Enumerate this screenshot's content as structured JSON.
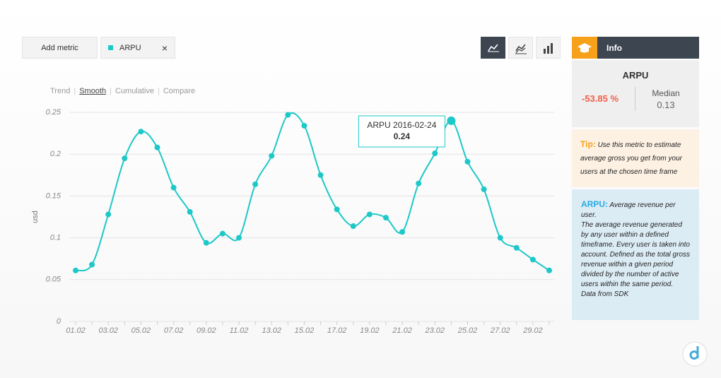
{
  "toolbar": {
    "add_metric": "Add metric",
    "metric": "ARPU",
    "remove": "×"
  },
  "modes": [
    "Trend",
    "Smooth",
    "Cumulative",
    "Compare"
  ],
  "info": {
    "header": "Info",
    "metric": "ARPU",
    "change": "-53.85 %",
    "median_label": "Median",
    "median_value": "0.13",
    "tip_label": "Tip:",
    "tip_text": "Use this metric to estimate average gross you get from your users at the chosen time frame",
    "definition_label": "ARPU:",
    "definition_lines": [
      "Average revenue per user.",
      "The average revenue generated by any user within a defined timeframe. Every user is taken into account. Defined as the total gross revenue within a given period divided by the number of active users within the same period.",
      "Data from SDK"
    ]
  },
  "chart_data": {
    "type": "line",
    "y_label": "usd",
    "categories": [
      "01.02",
      null,
      "03.02",
      null,
      "05.02",
      null,
      "07.02",
      null,
      "09.02",
      null,
      "11.02",
      null,
      "13.02",
      null,
      "15.02",
      null,
      "17.02",
      null,
      "19.02",
      null,
      "21.02",
      null,
      "23.02",
      null,
      "25.02",
      null,
      "27.02",
      null,
      "29.02",
      null
    ],
    "series": [
      {
        "name": "ARPU",
        "color": "#1ec8c8",
        "values": [
          0.061,
          0.068,
          0.128,
          0.195,
          0.227,
          0.208,
          0.16,
          0.131,
          0.094,
          0.105,
          0.1,
          0.164,
          0.198,
          0.247,
          0.234,
          0.175,
          0.134,
          0.114,
          0.128,
          0.124,
          0.107,
          0.165,
          0.201,
          0.24,
          0.191,
          0.158,
          0.1,
          0.088,
          0.074,
          0.061
        ]
      }
    ],
    "ylim": [
      0,
      0.25
    ],
    "yticks": [
      0,
      0.05,
      0.1,
      0.15,
      0.2,
      0.25
    ],
    "grid": true,
    "smooth": true,
    "tooltip": {
      "label": "ARPU 2016-02-24",
      "index": 23
    }
  }
}
